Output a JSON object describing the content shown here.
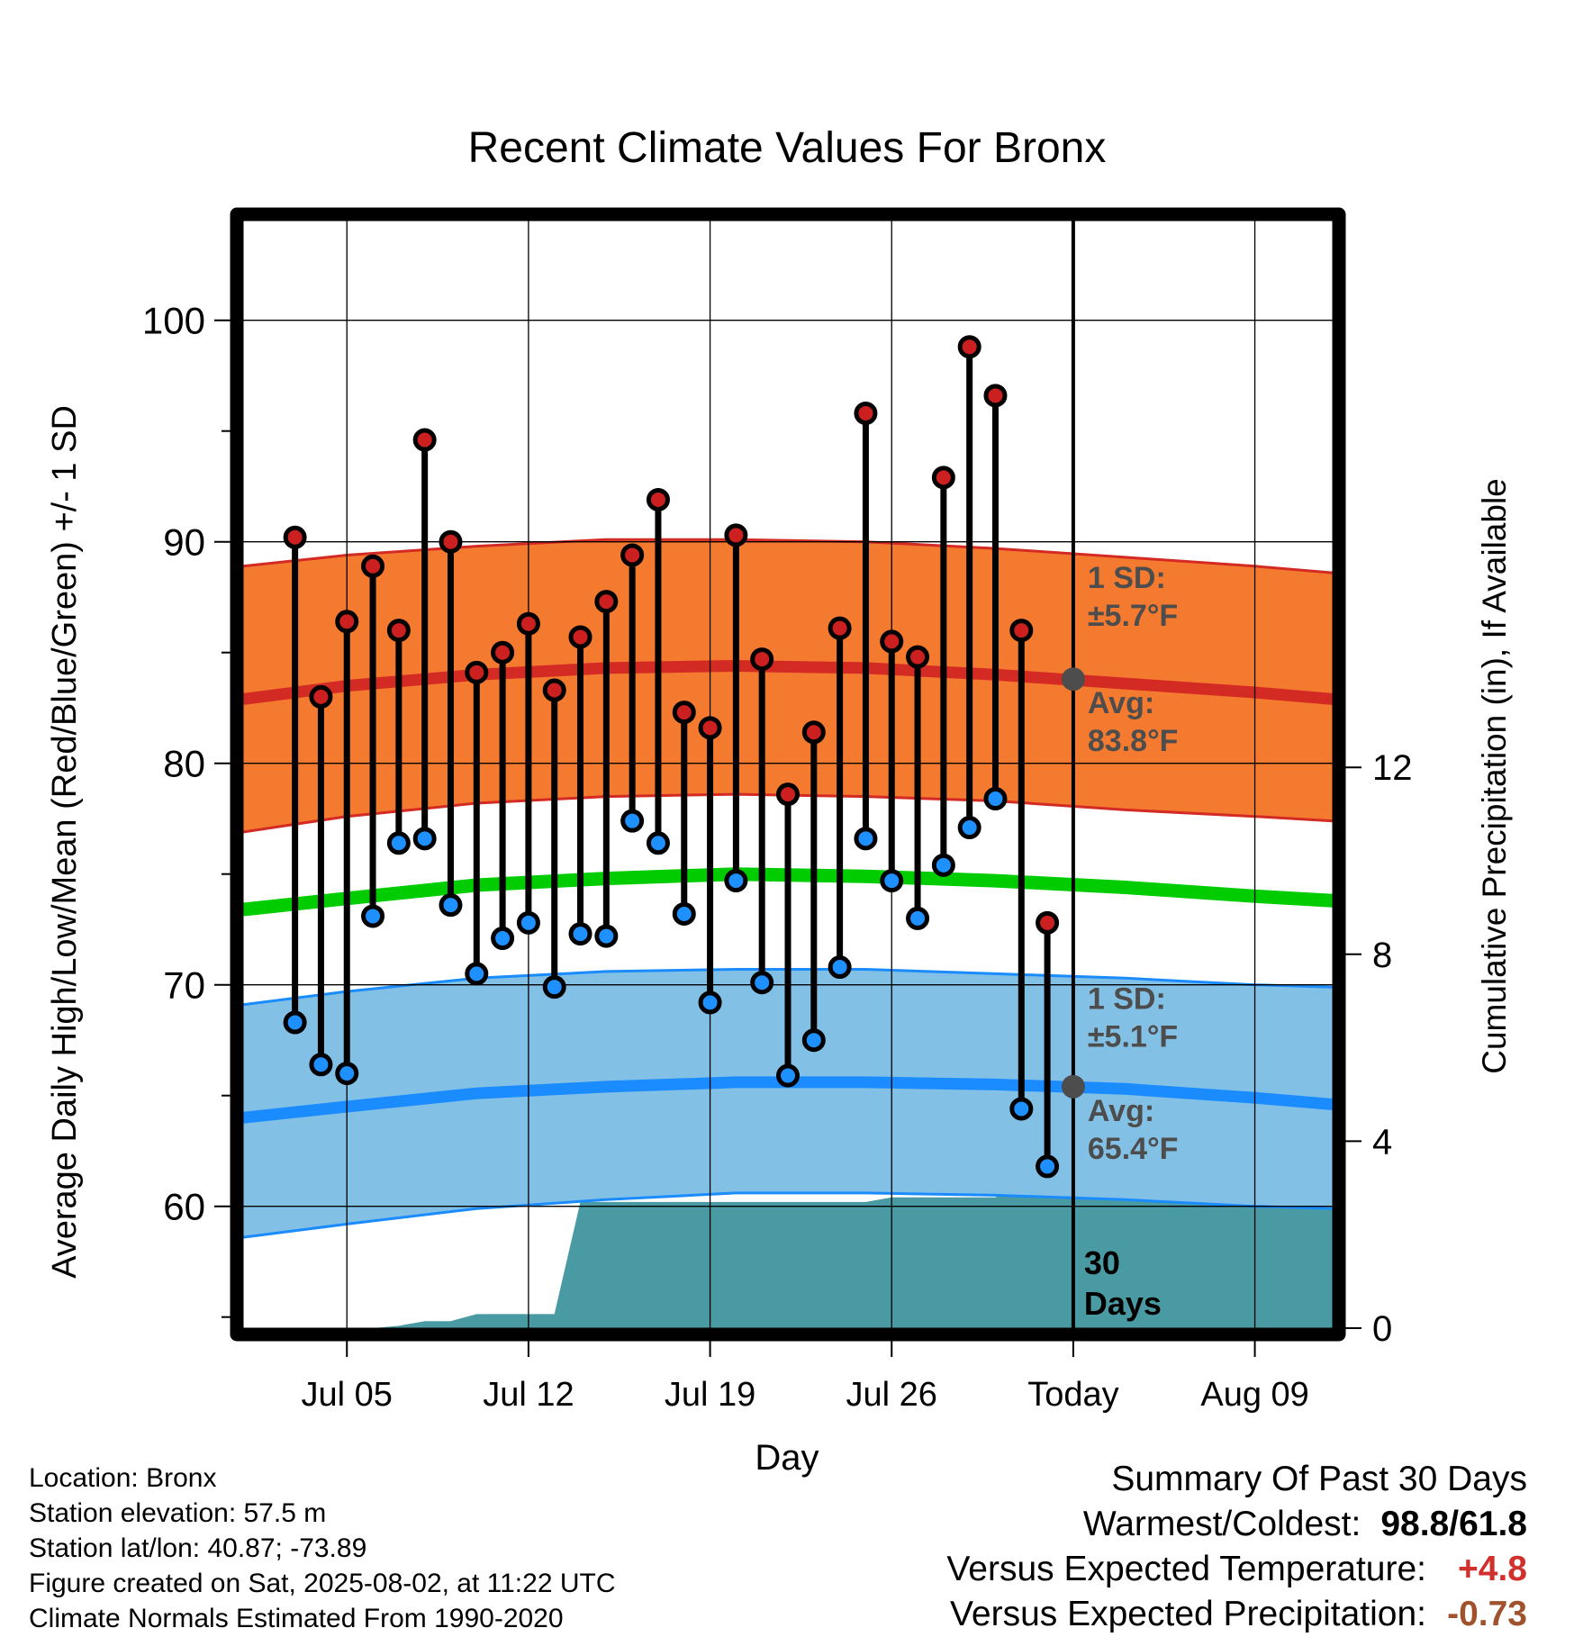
{
  "chart_data": {
    "type": "line",
    "title": "Recent Climate Values For Bronx",
    "xlabel": "Day",
    "ylabel": "Average Daily High/Low/Mean (Red/Blue/Green) +/- 1 SD",
    "y2label": "Cumulative Precipitation (in), If Available",
    "xlim": [
      "2025-07-01",
      "2025-08-12"
    ],
    "x_ticks": [
      {
        "date": "2025-07-05",
        "label": "Jul 05"
      },
      {
        "date": "2025-07-12",
        "label": "Jul 12"
      },
      {
        "date": "2025-07-19",
        "label": "Jul 19"
      },
      {
        "date": "2025-07-26",
        "label": "Jul 26"
      },
      {
        "date": "2025-08-02",
        "label": "Today"
      },
      {
        "date": "2025-08-09",
        "label": "Aug 09"
      }
    ],
    "ylim": [
      54.5,
      104.5
    ],
    "y_ticks": [
      60,
      70,
      80,
      90,
      100
    ],
    "y_ticks_minor": [
      55,
      65,
      75,
      85,
      95
    ],
    "y2lim": [
      0,
      23.7
    ],
    "y2_ticks": [
      0,
      4,
      8,
      12
    ],
    "grid": true,
    "today": "2025-08-02",
    "period_label": "30 Days",
    "normal_high": {
      "x": [
        "2025-07-01",
        "2025-07-05",
        "2025-07-10",
        "2025-07-15",
        "2025-07-20",
        "2025-07-25",
        "2025-07-30",
        "2025-08-04",
        "2025-08-09",
        "2025-08-12"
      ],
      "avg": [
        82.9,
        83.5,
        84.0,
        84.3,
        84.4,
        84.3,
        84.0,
        83.6,
        83.2,
        82.9
      ],
      "upper": [
        88.9,
        89.4,
        89.8,
        90.1,
        90.1,
        90.0,
        89.7,
        89.3,
        88.9,
        88.6
      ],
      "lower": [
        76.9,
        77.6,
        78.2,
        78.5,
        78.6,
        78.5,
        78.3,
        77.9,
        77.6,
        77.4
      ],
      "sd_label": "1 SD:",
      "sd_value": "±5.7°F",
      "avg_label": "Avg:",
      "avg_value": "83.8°F",
      "today_avg": 83.8
    },
    "normal_low": {
      "x": [
        "2025-07-01",
        "2025-07-05",
        "2025-07-10",
        "2025-07-15",
        "2025-07-20",
        "2025-07-25",
        "2025-07-30",
        "2025-08-04",
        "2025-08-09",
        "2025-08-12"
      ],
      "avg": [
        64.0,
        64.5,
        65.1,
        65.4,
        65.6,
        65.6,
        65.5,
        65.3,
        64.9,
        64.6
      ],
      "upper": [
        69.1,
        69.7,
        70.3,
        70.6,
        70.7,
        70.7,
        70.5,
        70.3,
        70.0,
        69.9
      ],
      "lower": [
        58.6,
        59.2,
        59.9,
        60.3,
        60.6,
        60.6,
        60.5,
        60.3,
        60.0,
        59.9
      ],
      "sd_label": "1 SD:",
      "sd_value": "±5.1°F",
      "avg_label": "Avg:",
      "avg_value": "65.4°F",
      "today_avg": 65.4
    },
    "normal_mean": {
      "x": [
        "2025-07-01",
        "2025-07-05",
        "2025-07-10",
        "2025-07-15",
        "2025-07-20",
        "2025-07-25",
        "2025-07-30",
        "2025-08-04",
        "2025-08-09",
        "2025-08-12"
      ],
      "values": [
        73.4,
        73.9,
        74.5,
        74.8,
        75.0,
        74.9,
        74.7,
        74.4,
        74.0,
        73.8
      ]
    },
    "daily": [
      {
        "date": "2025-07-03",
        "high": 90.2,
        "low": 68.3
      },
      {
        "date": "2025-07-04",
        "high": 83.0,
        "low": 66.4
      },
      {
        "date": "2025-07-05",
        "high": 86.4,
        "low": 66.0
      },
      {
        "date": "2025-07-06",
        "high": 88.9,
        "low": 73.1
      },
      {
        "date": "2025-07-07",
        "high": 86.0,
        "low": 76.4
      },
      {
        "date": "2025-07-08",
        "high": 94.6,
        "low": 76.6
      },
      {
        "date": "2025-07-09",
        "high": 90.0,
        "low": 73.6
      },
      {
        "date": "2025-07-10",
        "high": 84.1,
        "low": 70.5
      },
      {
        "date": "2025-07-11",
        "high": 85.0,
        "low": 72.1
      },
      {
        "date": "2025-07-12",
        "high": 86.3,
        "low": 72.8
      },
      {
        "date": "2025-07-13",
        "high": 83.3,
        "low": 69.9
      },
      {
        "date": "2025-07-14",
        "high": 85.7,
        "low": 72.3
      },
      {
        "date": "2025-07-15",
        "high": 87.3,
        "low": 72.2
      },
      {
        "date": "2025-07-16",
        "high": 89.4,
        "low": 77.4
      },
      {
        "date": "2025-07-17",
        "high": 91.9,
        "low": 76.4
      },
      {
        "date": "2025-07-18",
        "high": 82.3,
        "low": 73.2
      },
      {
        "date": "2025-07-19",
        "high": 81.6,
        "low": 69.2
      },
      {
        "date": "2025-07-20",
        "high": 90.3,
        "low": 74.7
      },
      {
        "date": "2025-07-21",
        "high": 84.7,
        "low": 70.1
      },
      {
        "date": "2025-07-22",
        "high": 78.6,
        "low": 65.9
      },
      {
        "date": "2025-07-23",
        "high": 81.4,
        "low": 67.5
      },
      {
        "date": "2025-07-24",
        "high": 86.1,
        "low": 70.8
      },
      {
        "date": "2025-07-25",
        "high": 95.8,
        "low": 76.6
      },
      {
        "date": "2025-07-26",
        "high": 85.5,
        "low": 74.7
      },
      {
        "date": "2025-07-27",
        "high": 84.8,
        "low": 73.0
      },
      {
        "date": "2025-07-28",
        "high": 92.9,
        "low": 75.4
      },
      {
        "date": "2025-07-29",
        "high": 98.8,
        "low": 77.1
      },
      {
        "date": "2025-07-30",
        "high": 96.6,
        "low": 78.4
      },
      {
        "date": "2025-07-31",
        "high": 86.0,
        "low": 64.4
      },
      {
        "date": "2025-08-01",
        "high": 72.8,
        "low": 61.8
      }
    ],
    "precip_cumulative": {
      "x": [
        "2025-07-01",
        "2025-07-06",
        "2025-07-07",
        "2025-07-08",
        "2025-07-09",
        "2025-07-10",
        "2025-07-13",
        "2025-07-14",
        "2025-07-25",
        "2025-07-26",
        "2025-07-30",
        "2025-07-31",
        "2025-08-12"
      ],
      "values": [
        0,
        0,
        0.05,
        0.15,
        0.15,
        0.3,
        0.3,
        2.7,
        2.7,
        2.8,
        2.8,
        3.1,
        3.1
      ]
    },
    "colors": {
      "high_band": "#f47a30",
      "high_line": "#d42a24",
      "low_band": "#82c0e6",
      "low_line": "#1a8cff",
      "mean_line": "#00cc00",
      "precip": "#4a9aa3",
      "high_marker": "#cc1f1f",
      "low_marker": "#1e90ff",
      "annotation": "#4d4d4d"
    }
  },
  "meta": {
    "location": "Location: Bronx",
    "elevation": "Station elevation: 57.5 m",
    "latlon": "Station lat/lon: 40.87; -73.89",
    "created": "Figure created on Sat, 2025-08-02, at 11:22 UTC",
    "normals": "Climate Normals Estimated From 1990-2020"
  },
  "summary": {
    "title": "Summary Of Past 30 Days",
    "warmest_label": "Warmest/Coldest:",
    "warmest_value": "98.8/61.8",
    "temp_label": "Versus Expected Temperature:",
    "temp_value": "+4.8",
    "temp_color": "#d0312d",
    "precip_label": "Versus Expected Precipitation:",
    "precip_value": "-0.73",
    "precip_color": "#a0522d"
  }
}
